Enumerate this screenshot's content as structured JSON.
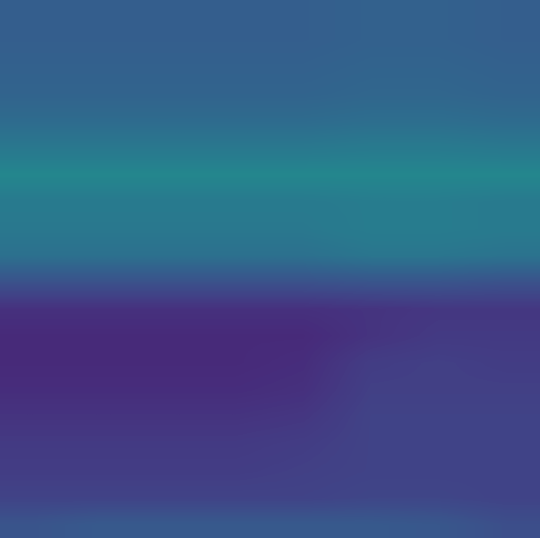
{
  "chart_data": {
    "type": "heatmap",
    "color": "viridis",
    "tick_labels": false,
    "cell_range": [
      0,
      1
    ],
    "cells": [
      [
        0.3,
        0.3,
        0.3,
        0.3,
        0.3,
        0.31,
        0.31,
        0.3
      ],
      [
        0.3,
        0.3,
        0.3,
        0.3,
        0.3,
        0.31,
        0.31,
        0.3
      ],
      [
        0.31,
        0.31,
        0.31,
        0.31,
        0.31,
        0.32,
        0.32,
        0.31
      ],
      [
        0.32,
        0.32,
        0.32,
        0.32,
        0.32,
        0.33,
        0.33,
        0.32
      ],
      [
        0.35,
        0.35,
        0.35,
        0.35,
        0.35,
        0.36,
        0.36,
        0.35
      ],
      [
        0.4,
        0.4,
        0.4,
        0.4,
        0.4,
        0.41,
        0.41,
        0.4
      ],
      [
        0.46,
        0.46,
        0.46,
        0.46,
        0.46,
        0.46,
        0.46,
        0.46
      ],
      [
        0.41,
        0.41,
        0.41,
        0.41,
        0.41,
        0.42,
        0.42,
        0.41
      ],
      [
        0.4,
        0.4,
        0.4,
        0.4,
        0.4,
        0.42,
        0.42,
        0.41
      ],
      [
        0.37,
        0.37,
        0.37,
        0.37,
        0.37,
        0.39,
        0.39,
        0.38
      ],
      [
        0.25,
        0.25,
        0.25,
        0.25,
        0.25,
        0.26,
        0.26,
        0.25
      ],
      [
        0.14,
        0.14,
        0.14,
        0.14,
        0.14,
        0.15,
        0.16,
        0.16
      ],
      [
        0.12,
        0.12,
        0.12,
        0.12,
        0.12,
        0.15,
        0.17,
        0.17
      ],
      [
        0.12,
        0.12,
        0.12,
        0.12,
        0.13,
        0.18,
        0.19,
        0.18
      ],
      [
        0.13,
        0.13,
        0.13,
        0.13,
        0.14,
        0.19,
        0.19,
        0.19
      ],
      [
        0.15,
        0.15,
        0.15,
        0.15,
        0.16,
        0.2,
        0.2,
        0.2
      ],
      [
        0.17,
        0.17,
        0.17,
        0.17,
        0.18,
        0.2,
        0.2,
        0.2
      ],
      [
        0.18,
        0.18,
        0.18,
        0.18,
        0.19,
        0.2,
        0.2,
        0.2
      ],
      [
        0.2,
        0.2,
        0.2,
        0.2,
        0.2,
        0.21,
        0.21,
        0.2
      ],
      [
        0.26,
        0.28,
        0.28,
        0.28,
        0.28,
        0.28,
        0.27,
        0.24
      ]
    ]
  }
}
